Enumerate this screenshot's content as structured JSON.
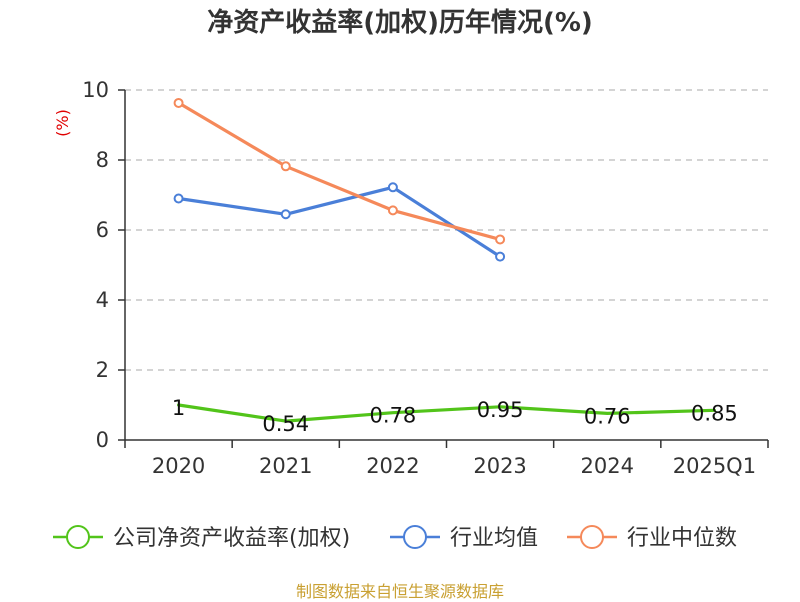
{
  "chart_data": {
    "type": "line",
    "title": "净资产收益率(加权)历年情况(%)",
    "ylabel": "(%)",
    "categories": [
      "2020",
      "2021",
      "2022",
      "2023",
      "2024",
      "2025Q1"
    ],
    "ylim": [
      0,
      10
    ],
    "yticks": [
      0,
      2,
      4,
      6,
      8,
      10
    ],
    "grid": true,
    "legend_position": "bottom",
    "series": [
      {
        "name": "公司净资产收益率(加权)",
        "color": "#52c41a",
        "values": [
          1,
          0.54,
          0.78,
          0.95,
          0.76,
          0.85
        ],
        "labels": [
          "1",
          "0.54",
          "0.78",
          "0.95",
          "0.76",
          "0.85"
        ],
        "show_markers": false,
        "show_labels": true
      },
      {
        "name": "行业均值",
        "color": "#4a7fd8",
        "values": [
          6.9,
          6.45,
          7.22,
          5.24,
          null,
          null
        ],
        "show_markers": true,
        "show_labels": false
      },
      {
        "name": "行业中位数",
        "color": "#f5895a",
        "values": [
          9.63,
          7.82,
          6.56,
          5.73,
          null,
          null
        ],
        "show_markers": true,
        "show_labels": false
      }
    ]
  },
  "source": "制图数据来自恒生聚源数据库"
}
